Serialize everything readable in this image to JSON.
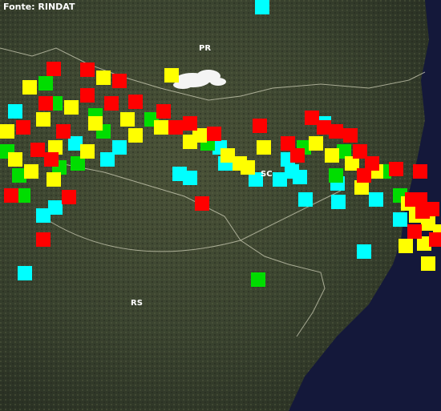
{
  "source": "Fonte: RINDAT",
  "labels": [
    "PR",
    "SC",
    "RS"
  ]
}
